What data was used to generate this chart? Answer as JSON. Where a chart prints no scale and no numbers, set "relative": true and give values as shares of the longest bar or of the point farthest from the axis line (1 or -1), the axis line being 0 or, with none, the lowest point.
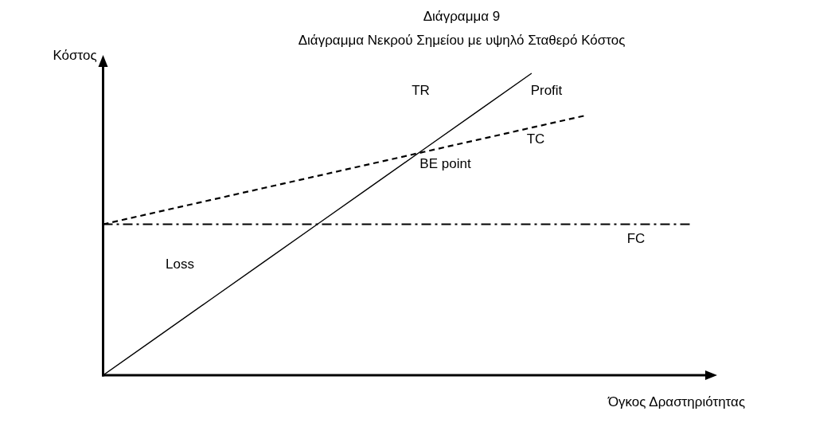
{
  "chart_data": {
    "type": "line",
    "title": "Διάγραμμα 9",
    "subtitle": "Διάγραμμα Νεκρού Σημείου με υψηλό Σταθερό Κόστος",
    "xlabel": "Όγκος Δραστηριότητας",
    "ylabel": "Κόστος",
    "relative": true,
    "categories": [
      null,
      null,
      null,
      null,
      null,
      null,
      null,
      null,
      null,
      null,
      null,
      null
    ],
    "series": [
      {
        "name": "TR",
        "color": "#000000",
        "line_style": "solid",
        "values": [
          0,
          0.125,
          0.25,
          0.375,
          0.5,
          0.625,
          0.75,
          0.875,
          1,
          null,
          null,
          null
        ]
      },
      {
        "name": "TC",
        "color": "#000000",
        "line_style": "dashed",
        "values": [
          0.5,
          0.54,
          0.58,
          0.62,
          0.66,
          0.7,
          0.74,
          0.78,
          0.82,
          0.86,
          null,
          null
        ]
      },
      {
        "name": "FC",
        "color": "#000000",
        "line_style": "dashdot",
        "values": [
          0.5,
          0.5,
          0.5,
          0.5,
          0.5,
          0.5,
          0.5,
          0.5,
          0.5,
          0.5,
          0.5,
          0.5
        ]
      }
    ],
    "annotations": [
      "Profit",
      "BE point",
      "Loss"
    ]
  }
}
